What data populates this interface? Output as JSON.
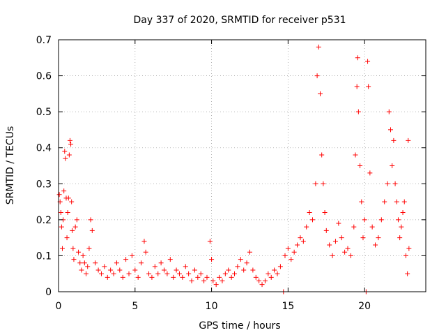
{
  "chart_data": {
    "type": "scatter",
    "title": "Day 337 of 2020, SRMTID for receiver p531",
    "xlabel": "GPS time / hours",
    "ylabel": "SRMTID / TECUs",
    "xlim": [
      0,
      24
    ],
    "ylim": [
      0,
      0.7
    ],
    "xticks": [
      0,
      5,
      10,
      15,
      20
    ],
    "xtick_labels": [
      "0",
      "5",
      "10",
      "15",
      "20"
    ],
    "yticks": [
      0,
      0.1,
      0.2,
      0.3,
      0.4,
      0.5,
      0.6,
      0.7
    ],
    "ytick_labels": [
      "0",
      "0.1",
      "0.2",
      "0.3",
      "0.4",
      "0.5",
      "0.6",
      "0.7"
    ],
    "grid": true,
    "marker": "plus",
    "color": "#ff0000",
    "series": [
      {
        "name": "SRMTID",
        "points": [
          [
            0.05,
            0.27
          ],
          [
            0.1,
            0.25
          ],
          [
            0.15,
            0.22
          ],
          [
            0.2,
            0.18
          ],
          [
            0.25,
            0.12
          ],
          [
            0.3,
            0.2
          ],
          [
            0.35,
            0.28
          ],
          [
            0.4,
            0.39
          ],
          [
            0.45,
            0.37
          ],
          [
            0.5,
            0.26
          ],
          [
            0.55,
            0.15
          ],
          [
            0.6,
            0.22
          ],
          [
            0.65,
            0.26
          ],
          [
            0.7,
            0.38
          ],
          [
            0.75,
            0.42
          ],
          [
            0.8,
            0.41
          ],
          [
            0.85,
            0.25
          ],
          [
            0.9,
            0.17
          ],
          [
            0.95,
            0.12
          ],
          [
            1.0,
            0.09
          ],
          [
            1.1,
            0.18
          ],
          [
            1.2,
            0.2
          ],
          [
            1.3,
            0.11
          ],
          [
            1.4,
            0.08
          ],
          [
            1.5,
            0.06
          ],
          [
            1.6,
            0.1
          ],
          [
            1.7,
            0.08
          ],
          [
            1.8,
            0.05
          ],
          [
            1.9,
            0.07
          ],
          [
            2.0,
            0.12
          ],
          [
            2.1,
            0.2
          ],
          [
            2.2,
            0.17
          ],
          [
            2.4,
            0.08
          ],
          [
            2.6,
            0.06
          ],
          [
            2.8,
            0.05
          ],
          [
            3.0,
            0.07
          ],
          [
            3.2,
            0.04
          ],
          [
            3.4,
            0.06
          ],
          [
            3.6,
            0.05
          ],
          [
            3.8,
            0.08
          ],
          [
            4.0,
            0.06
          ],
          [
            4.2,
            0.04
          ],
          [
            4.4,
            0.09
          ],
          [
            4.6,
            0.05
          ],
          [
            4.8,
            0.1
          ],
          [
            5.0,
            0.06
          ],
          [
            5.2,
            0.04
          ],
          [
            5.4,
            0.08
          ],
          [
            5.6,
            0.14
          ],
          [
            5.7,
            0.11
          ],
          [
            5.9,
            0.05
          ],
          [
            6.1,
            0.04
          ],
          [
            6.3,
            0.07
          ],
          [
            6.5,
            0.05
          ],
          [
            6.7,
            0.08
          ],
          [
            6.9,
            0.06
          ],
          [
            7.1,
            0.05
          ],
          [
            7.3,
            0.09
          ],
          [
            7.5,
            0.04
          ],
          [
            7.7,
            0.06
          ],
          [
            7.9,
            0.05
          ],
          [
            8.1,
            0.04
          ],
          [
            8.3,
            0.07
          ],
          [
            8.5,
            0.05
          ],
          [
            8.7,
            0.03
          ],
          [
            8.9,
            0.06
          ],
          [
            9.1,
            0.04
          ],
          [
            9.3,
            0.05
          ],
          [
            9.5,
            0.03
          ],
          [
            9.7,
            0.04
          ],
          [
            9.9,
            0.14
          ],
          [
            10.0,
            0.09
          ],
          [
            10.1,
            0.03
          ],
          [
            10.3,
            0.02
          ],
          [
            10.5,
            0.04
          ],
          [
            10.7,
            0.03
          ],
          [
            10.9,
            0.05
          ],
          [
            11.1,
            0.06
          ],
          [
            11.3,
            0.04
          ],
          [
            11.5,
            0.05
          ],
          [
            11.7,
            0.07
          ],
          [
            11.9,
            0.09
          ],
          [
            12.1,
            0.06
          ],
          [
            12.3,
            0.08
          ],
          [
            12.5,
            0.11
          ],
          [
            12.7,
            0.06
          ],
          [
            12.9,
            0.04
          ],
          [
            13.1,
            0.03
          ],
          [
            13.3,
            0.02
          ],
          [
            13.5,
            0.03
          ],
          [
            13.7,
            0.05
          ],
          [
            13.9,
            0.04
          ],
          [
            14.1,
            0.06
          ],
          [
            14.3,
            0.05
          ],
          [
            14.5,
            0.07
          ],
          [
            14.7,
            0.0
          ],
          [
            14.8,
            0.1
          ],
          [
            15.0,
            0.12
          ],
          [
            15.2,
            0.09
          ],
          [
            15.4,
            0.11
          ],
          [
            15.6,
            0.13
          ],
          [
            15.8,
            0.15
          ],
          [
            16.0,
            0.14
          ],
          [
            16.2,
            0.18
          ],
          [
            16.4,
            0.22
          ],
          [
            16.6,
            0.2
          ],
          [
            16.8,
            0.3
          ],
          [
            16.9,
            0.6
          ],
          [
            17.0,
            0.68
          ],
          [
            17.1,
            0.55
          ],
          [
            17.2,
            0.38
          ],
          [
            17.3,
            0.3
          ],
          [
            17.4,
            0.22
          ],
          [
            17.5,
            0.17
          ],
          [
            17.7,
            0.13
          ],
          [
            17.9,
            0.1
          ],
          [
            18.1,
            0.14
          ],
          [
            18.3,
            0.19
          ],
          [
            18.5,
            0.15
          ],
          [
            18.7,
            0.11
          ],
          [
            18.9,
            0.12
          ],
          [
            19.1,
            0.1
          ],
          [
            19.3,
            0.18
          ],
          [
            19.4,
            0.38
          ],
          [
            19.5,
            0.57
          ],
          [
            19.55,
            0.65
          ],
          [
            19.6,
            0.5
          ],
          [
            19.7,
            0.35
          ],
          [
            19.8,
            0.25
          ],
          [
            19.9,
            0.15
          ],
          [
            20.0,
            0.2
          ],
          [
            20.1,
            0.0
          ],
          [
            20.2,
            0.64
          ],
          [
            20.25,
            0.57
          ],
          [
            20.35,
            0.33
          ],
          [
            20.5,
            0.18
          ],
          [
            20.7,
            0.13
          ],
          [
            20.9,
            0.15
          ],
          [
            21.1,
            0.2
          ],
          [
            21.3,
            0.25
          ],
          [
            21.5,
            0.3
          ],
          [
            21.6,
            0.5
          ],
          [
            21.7,
            0.45
          ],
          [
            21.8,
            0.35
          ],
          [
            21.9,
            0.42
          ],
          [
            22.0,
            0.3
          ],
          [
            22.1,
            0.25
          ],
          [
            22.2,
            0.2
          ],
          [
            22.3,
            0.15
          ],
          [
            22.4,
            0.18
          ],
          [
            22.5,
            0.22
          ],
          [
            22.6,
            0.25
          ],
          [
            22.7,
            0.1
          ],
          [
            22.8,
            0.05
          ],
          [
            22.85,
            0.42
          ],
          [
            22.9,
            0.12
          ]
        ]
      }
    ]
  }
}
